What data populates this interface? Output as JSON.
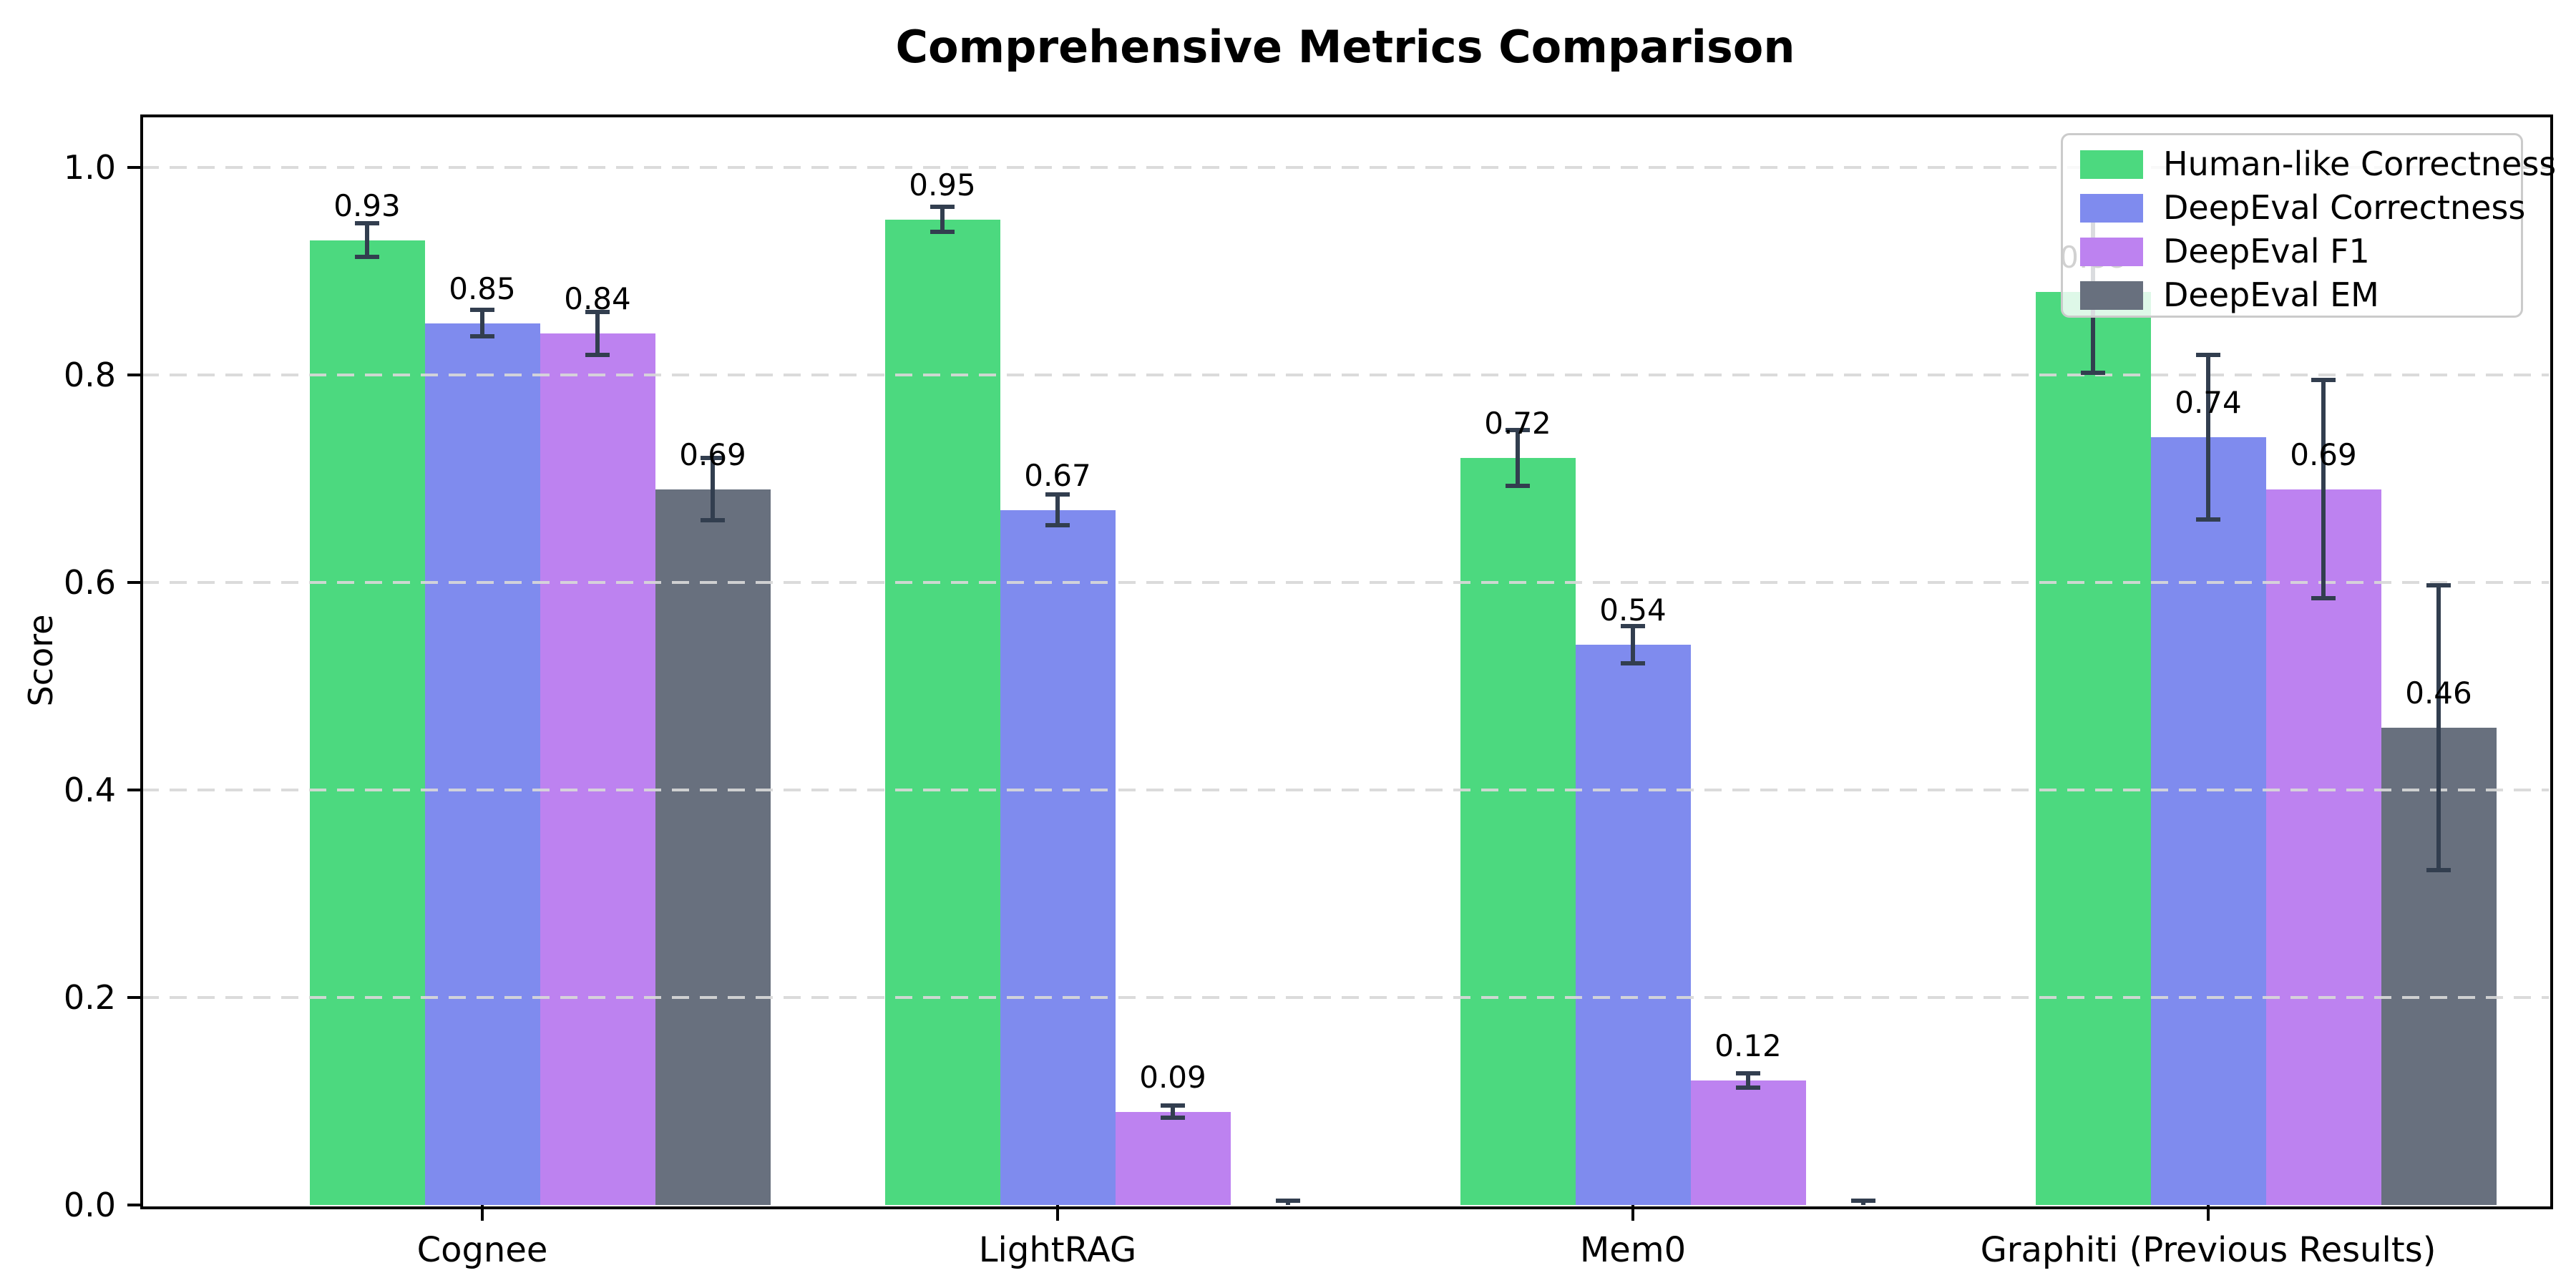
{
  "chart_data": {
    "type": "bar",
    "title": "Comprehensive Metrics Comparison",
    "xlabel": "",
    "ylabel": "Score",
    "categories": [
      "Cognee",
      "LightRAG",
      "Mem0",
      "Graphiti (Previous Results)"
    ],
    "series": [
      {
        "name": "Human-like Correctness",
        "color": "#4cd97f",
        "values": [
          0.93,
          0.95,
          0.72,
          0.88
        ],
        "errors": [
          0.016,
          0.012,
          0.027,
          0.078
        ]
      },
      {
        "name": "DeepEval Correctness",
        "color": "#7f8bee",
        "values": [
          0.85,
          0.67,
          0.54,
          0.74
        ],
        "errors": [
          0.013,
          0.015,
          0.018,
          0.079
        ]
      },
      {
        "name": "DeepEval F1",
        "color": "#bd82f0",
        "values": [
          0.84,
          0.09,
          0.12,
          0.69
        ],
        "errors": [
          0.021,
          0.006,
          0.007,
          0.105
        ]
      },
      {
        "name": "DeepEval EM",
        "color": "#68707e",
        "values": [
          0.69,
          0.0,
          0.0,
          0.46
        ],
        "errors": [
          0.03,
          0.004,
          0.004,
          0.137
        ]
      }
    ],
    "value_label_format": "2dp",
    "value_labels_hidden_for_zero": true,
    "yticks": [
      "0.0",
      "0.2",
      "0.4",
      "0.6",
      "0.8",
      "1.0"
    ],
    "ylim": [
      0.0,
      1.05
    ],
    "grid": "horizontal-dashed",
    "grid_color": "#d8d8d8",
    "error_bar_color": "#323e4f",
    "legend_position": "upper-right"
  }
}
